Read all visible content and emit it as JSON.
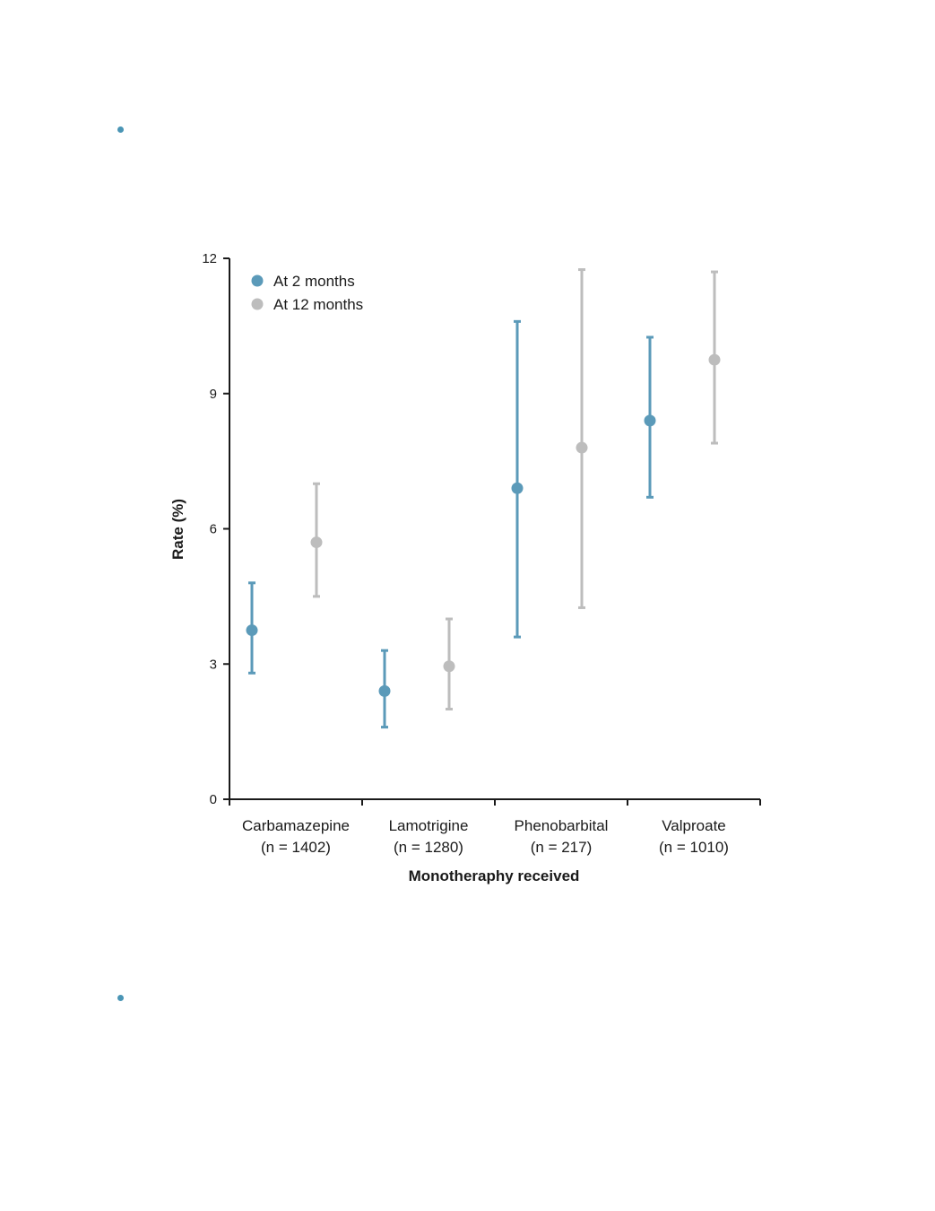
{
  "chart_data": {
    "type": "scatter",
    "subtype": "dot-with-error-bars",
    "categories": [
      [
        "Carbamazepine",
        "(n = 1402)"
      ],
      [
        "Lamotrigine",
        "(n = 1280)"
      ],
      [
        "Phenobarbital",
        "(n = 217)"
      ],
      [
        "Valproate",
        "(n = 1010)"
      ]
    ],
    "series": [
      {
        "name": "At 2 months",
        "color": "#5b9ab9",
        "values": [
          3.75,
          2.4,
          6.9,
          8.4
        ],
        "lower": [
          2.8,
          1.6,
          3.6,
          6.7
        ],
        "upper": [
          4.8,
          3.3,
          10.6,
          10.25
        ]
      },
      {
        "name": "At 12 months",
        "color": "#bdbdbd",
        "values": [
          5.7,
          2.95,
          7.8,
          9.75
        ],
        "lower": [
          4.5,
          2.0,
          4.25,
          7.9
        ],
        "upper": [
          7.0,
          4.0,
          11.75,
          11.7
        ]
      }
    ],
    "xlabel": "Monotheraphy received",
    "ylabel": "Rate (%)",
    "ylim": [
      0,
      12
    ],
    "yticks": [
      0,
      3,
      6,
      9,
      12
    ],
    "grid": false,
    "legend": "top-left"
  }
}
